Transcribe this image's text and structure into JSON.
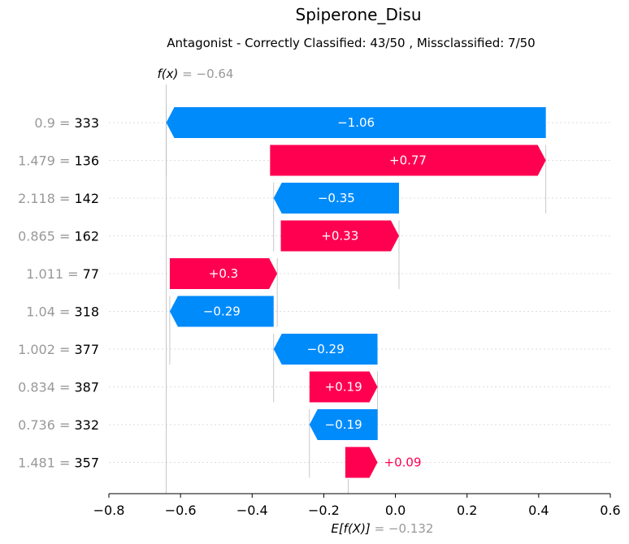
{
  "chart_data": {
    "type": "bar",
    "variant": "waterfall",
    "title": "Spiperone_Disu",
    "subtitle": "Antagonist - Correctly Classified: 43/50 , Missclassified: 7/50",
    "fx_label": "f(x)",
    "fx_value_text": " = −0.64",
    "fx_value": -0.64,
    "ex_label": "E[f(X)]",
    "ex_value_text": " = −0.132",
    "ex_value": -0.132,
    "xlim": [
      -0.8,
      0.6
    ],
    "xticks": [
      -0.8,
      -0.6,
      -0.4,
      -0.2,
      0.0,
      0.2,
      0.4,
      0.6
    ],
    "xtick_labels": [
      "−0.8",
      "−0.6",
      "−0.4",
      "−0.2",
      "0.0",
      "0.2",
      "0.4",
      "0.6"
    ],
    "colors": {
      "positive": "#ff0051",
      "negative": "#008bfb",
      "feature_value": "#999999",
      "feature_name": "#000000"
    },
    "features": [
      {
        "value": "0.9",
        "name": "333",
        "contribution": -1.06,
        "label": "−1.06",
        "start": 0.42,
        "end": -0.64
      },
      {
        "value": "1.479",
        "name": "136",
        "contribution": 0.77,
        "label": "+0.77",
        "start": -0.35,
        "end": 0.42
      },
      {
        "value": "2.118",
        "name": "142",
        "contribution": -0.35,
        "label": "−0.35",
        "start": 0.01,
        "end": -0.34
      },
      {
        "value": "0.865",
        "name": "162",
        "contribution": 0.33,
        "label": "+0.33",
        "start": -0.32,
        "end": 0.01
      },
      {
        "value": "1.011",
        "name": "77",
        "contribution": 0.3,
        "label": "+0.3",
        "start": -0.63,
        "end": -0.33
      },
      {
        "value": "1.04",
        "name": "318",
        "contribution": -0.29,
        "label": "−0.29",
        "start": -0.34,
        "end": -0.63
      },
      {
        "value": "1.002",
        "name": "377",
        "contribution": -0.29,
        "label": "−0.29",
        "start": -0.05,
        "end": -0.34
      },
      {
        "value": "0.834",
        "name": "387",
        "contribution": 0.19,
        "label": "+0.19",
        "start": -0.24,
        "end": -0.05
      },
      {
        "value": "0.736",
        "name": "332",
        "contribution": -0.19,
        "label": "−0.19",
        "start": -0.05,
        "end": -0.24
      },
      {
        "value": "1.481",
        "name": "357",
        "contribution": 0.09,
        "label": "+0.09",
        "start": -0.14,
        "end": -0.05
      }
    ]
  }
}
